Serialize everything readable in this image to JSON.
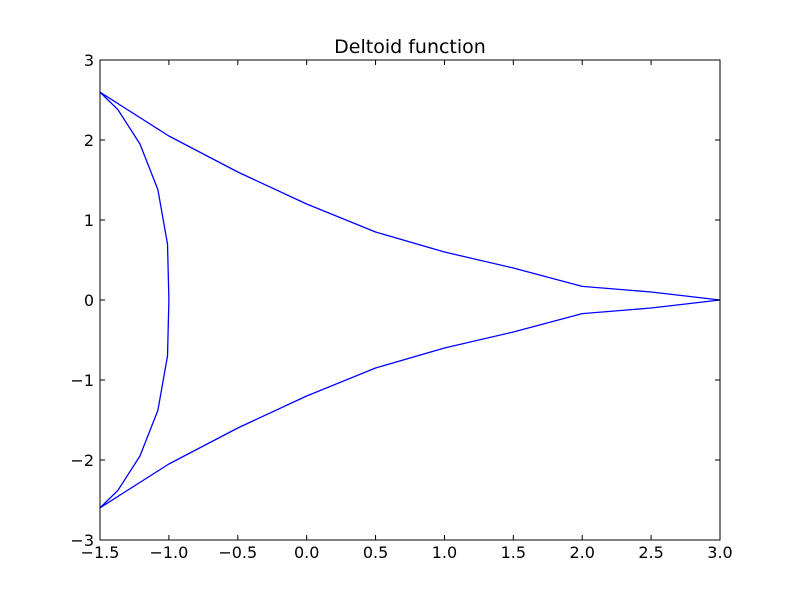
{
  "chart_data": {
    "type": "line",
    "title": "Deltoid function",
    "xlabel": "",
    "ylabel": "",
    "xlim": [
      -1.5,
      3.0
    ],
    "ylim": [
      -3,
      3
    ],
    "xticks": [
      -1.5,
      -1.0,
      -0.5,
      0.0,
      0.5,
      1.0,
      1.5,
      2.0,
      2.5,
      3.0
    ],
    "xtick_labels": [
      "−1.5",
      "−1.0",
      "−0.5",
      "0.0",
      "0.5",
      "1.0",
      "1.5",
      "2.0",
      "2.5",
      "3.0"
    ],
    "yticks": [
      -3,
      -2,
      -1,
      0,
      1,
      2,
      3
    ],
    "ytick_labels": [
      "−3",
      "−2",
      "−1",
      "0",
      "1",
      "2",
      "3"
    ],
    "grid": false,
    "legend": "none",
    "series": [
      {
        "color": "#0000ff",
        "points": [
          [
            3.0,
            0.0
          ],
          [
            2.5,
            0.1
          ],
          [
            2.0,
            0.17
          ],
          [
            1.5,
            0.4
          ],
          [
            1.0,
            0.6
          ],
          [
            0.5,
            0.85
          ],
          [
            0.0,
            1.2
          ],
          [
            -0.5,
            1.6
          ],
          [
            -1.0,
            2.05
          ],
          [
            -1.5,
            2.598
          ],
          [
            -1.37,
            2.38
          ],
          [
            -1.21,
            1.95
          ],
          [
            -1.08,
            1.38
          ],
          [
            -1.01,
            0.7
          ],
          [
            -1.0,
            0.0
          ],
          [
            -1.01,
            -0.7
          ],
          [
            -1.08,
            -1.38
          ],
          [
            -1.21,
            -1.95
          ],
          [
            -1.37,
            -2.38
          ],
          [
            -1.5,
            -2.598
          ],
          [
            -1.0,
            -2.05
          ],
          [
            -0.5,
            -1.6
          ],
          [
            0.0,
            -1.2
          ],
          [
            0.5,
            -0.85
          ],
          [
            1.0,
            -0.6
          ],
          [
            1.5,
            -0.4
          ],
          [
            2.0,
            -0.17
          ],
          [
            2.5,
            -0.1
          ],
          [
            3.0,
            0.0
          ]
        ]
      }
    ]
  }
}
